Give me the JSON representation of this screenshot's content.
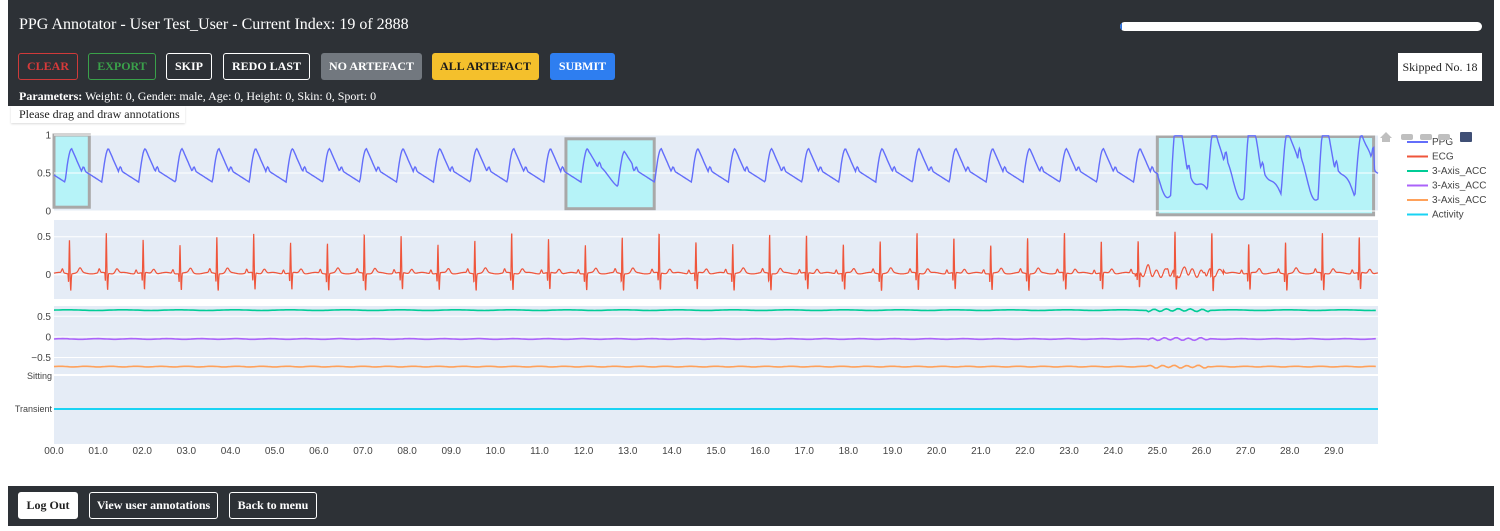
{
  "header": {
    "title": "PPG Annotator - User Test_User - Current Index: 19 of 2888",
    "progress_fraction": 0.0066,
    "skipped_label": "Skipped No. 18"
  },
  "toolbar": {
    "clear": "CLEAR",
    "export": "EXPORT",
    "skip": "SKIP",
    "redo_last": "REDO LAST",
    "no_artefact": "NO ARTEFACT",
    "all_artefact": "ALL ARTEFACT",
    "submit": "SUBMIT"
  },
  "parameters": {
    "label": "Parameters:",
    "text": " Weight: 0, Gender: male, Age: 0, Height: 0, Skin: 0, Sport: 0"
  },
  "hint": "Please drag and draw annotations",
  "modebar_icons": [
    "home-icon",
    "zoom-icon",
    "pan-icon",
    "select-icon",
    "plotly-logo-icon"
  ],
  "colors": {
    "ppg": "#636efa",
    "ecg": "#ef553b",
    "acc_x": "#00cc96",
    "acc_y": "#ab63fa",
    "acc_z": "#ffa15a",
    "activity": "#19d3f3",
    "panel_bg": "#e5ecf6",
    "annotation_fill": "#aef4f8",
    "annotation_border": "#a8a8a8"
  },
  "chart_data": {
    "type": "line",
    "x_range": [
      0,
      30
    ],
    "x_tick_values": [
      0,
      1,
      2,
      3,
      4,
      5,
      6,
      7,
      8,
      9,
      10,
      11,
      12,
      13,
      14,
      15,
      16,
      17,
      18,
      19,
      20,
      21,
      22,
      23,
      24,
      25,
      26,
      27,
      28,
      29
    ],
    "x_tick_labels": [
      "00.0",
      "01.0",
      "02.0",
      "03.0",
      "04.0",
      "05.0",
      "06.0",
      "07.0",
      "08.0",
      "09.0",
      "10.0",
      "11.0",
      "12.0",
      "13.0",
      "14.0",
      "15.0",
      "16.0",
      "17.0",
      "18.0",
      "19.0",
      "20.0",
      "21.0",
      "22.0",
      "23.0",
      "24.0",
      "25.0",
      "26.0",
      "27.0",
      "28.0",
      "29.0"
    ],
    "legend": [
      "PPG",
      "ECG",
      "3-Axis_ACC",
      "3-Axis_ACC",
      "3-Axis_ACC",
      "Activity"
    ],
    "panels": [
      {
        "series": "PPG",
        "y_range": [
          0,
          1
        ],
        "y_ticks": [
          "1",
          "0.5",
          "0"
        ],
        "y_tick_values": [
          1,
          0.5,
          0
        ]
      },
      {
        "series": "ECG",
        "y_range": [
          -0.32,
          0.72
        ],
        "y_ticks": [
          "0.5",
          "0"
        ],
        "y_tick_values": [
          0.5,
          0
        ]
      },
      {
        "series": "3-Axis_ACC",
        "y_range": [
          -0.9,
          0.75
        ],
        "y_ticks": [
          "0.5",
          "0",
          "−0.5"
        ],
        "y_tick_values": [
          0.5,
          0,
          -0.5
        ]
      },
      {
        "series": "Activity",
        "categories": [
          "Sitting",
          "Transient"
        ],
        "value": "Transient"
      }
    ],
    "ppg": {
      "beat_period_s": 0.835,
      "phase_s": 0.25
    },
    "ecg": {
      "beat_period_s": 0.835,
      "phase_s": 0.35,
      "baseline": 0.02,
      "r_peak": 0.55
    },
    "acc": [
      {
        "name": "3-Axis_ACC",
        "level": 0.65
      },
      {
        "name": "3-Axis_ACC",
        "level": -0.05
      },
      {
        "name": "3-Axis_ACC",
        "level": -0.72
      }
    ],
    "annotations": [
      {
        "x0": 0.0,
        "x1": 0.8,
        "y0": 0.05,
        "y1": 1.0
      },
      {
        "x0": 11.6,
        "x1": 13.6,
        "y0": 0.03,
        "y1": 0.95
      },
      {
        "x0": 25.0,
        "x1": 29.9,
        "y0": -0.05,
        "y1": 0.98
      }
    ]
  },
  "footer": {
    "log_out": "Log Out",
    "view_annotations": "View user annotations",
    "back_to_menu": "Back to menu"
  }
}
